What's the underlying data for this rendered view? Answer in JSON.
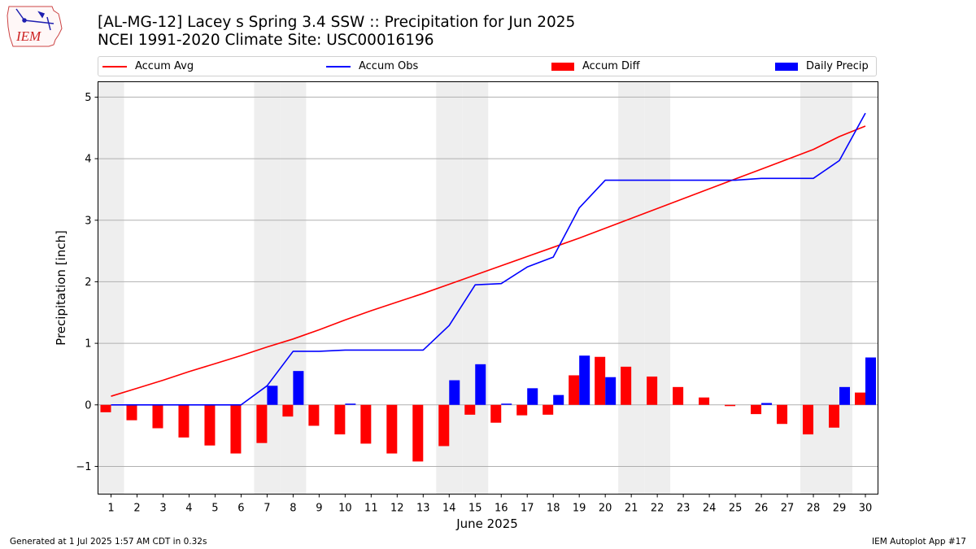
{
  "logo": {
    "text": "IEM"
  },
  "title": {
    "line1": "[AL-MG-12] Lacey s Spring 3.4 SSW :: Precipitation for Jun 2025",
    "line2": "NCEI 1991-2020 Climate Site: USC00016196"
  },
  "footer": {
    "left": "Generated at 1 Jul 2025 1:57 AM CDT in 0.32s",
    "right": "IEM Autoplot App #17"
  },
  "colors": {
    "avg": "#ff0000",
    "obs": "#0000ff",
    "diff": "#ff0000",
    "precip": "#0000ff",
    "weekend": "#eeeeee",
    "grid": "#b0b0b0"
  },
  "chart_data": {
    "type": "bar",
    "xlabel": "June 2025",
    "ylabel": "Precipitation [inch]",
    "ylim": [
      -1.45,
      5.25
    ],
    "yticks": [
      -1,
      0,
      1,
      2,
      3,
      4,
      5
    ],
    "ytick_labels": [
      "−1",
      "0",
      "1",
      "2",
      "3",
      "4",
      "5"
    ],
    "grid": true,
    "legend_position": "top",
    "days": [
      1,
      2,
      3,
      4,
      5,
      6,
      7,
      8,
      9,
      10,
      11,
      12,
      13,
      14,
      15,
      16,
      17,
      18,
      19,
      20,
      21,
      22,
      23,
      24,
      25,
      26,
      27,
      28,
      29,
      30
    ],
    "weekend_days": [
      1,
      7,
      8,
      14,
      15,
      21,
      22,
      28,
      29
    ],
    "series": [
      {
        "name": "Accum Avg",
        "kind": "line",
        "color": "#ff0000",
        "values": [
          0.14,
          0.27,
          0.4,
          0.54,
          0.67,
          0.8,
          0.94,
          1.07,
          1.22,
          1.38,
          1.53,
          1.67,
          1.81,
          1.96,
          2.11,
          2.26,
          2.41,
          2.56,
          2.71,
          2.87,
          3.03,
          3.19,
          3.35,
          3.51,
          3.67,
          3.83,
          3.99,
          4.15,
          4.36,
          4.53
        ]
      },
      {
        "name": "Accum Obs",
        "kind": "line",
        "color": "#0000ff",
        "values": [
          0,
          0,
          0,
          0,
          0,
          0,
          0.31,
          0.87,
          0.87,
          0.89,
          0.89,
          0.89,
          0.89,
          1.29,
          1.95,
          1.97,
          2.24,
          2.4,
          3.2,
          3.65,
          3.65,
          3.65,
          3.65,
          3.65,
          3.65,
          3.68,
          3.68,
          3.68,
          3.97,
          4.74
        ]
      },
      {
        "name": "Accum Diff",
        "kind": "bar",
        "color": "#ff0000",
        "values": [
          -0.12,
          -0.25,
          -0.38,
          -0.53,
          -0.66,
          -0.79,
          -0.62,
          -0.19,
          -0.34,
          -0.48,
          -0.63,
          -0.79,
          -0.92,
          -0.67,
          -0.16,
          -0.29,
          -0.17,
          -0.16,
          0.48,
          0.78,
          0.62,
          0.46,
          0.29,
          0.12,
          -0.02,
          -0.15,
          -0.31,
          -0.48,
          -0.37,
          0.2
        ]
      },
      {
        "name": "Daily Precip",
        "kind": "bar",
        "color": "#0000ff",
        "values": [
          0,
          0,
          0,
          0,
          0,
          0,
          0.31,
          0.55,
          0,
          0.02,
          0,
          0,
          0,
          0.4,
          0.66,
          0.02,
          0.27,
          0.16,
          0.8,
          0.45,
          0,
          0,
          0,
          0,
          0,
          0.03,
          0,
          0,
          0.29,
          0.77
        ]
      }
    ]
  }
}
